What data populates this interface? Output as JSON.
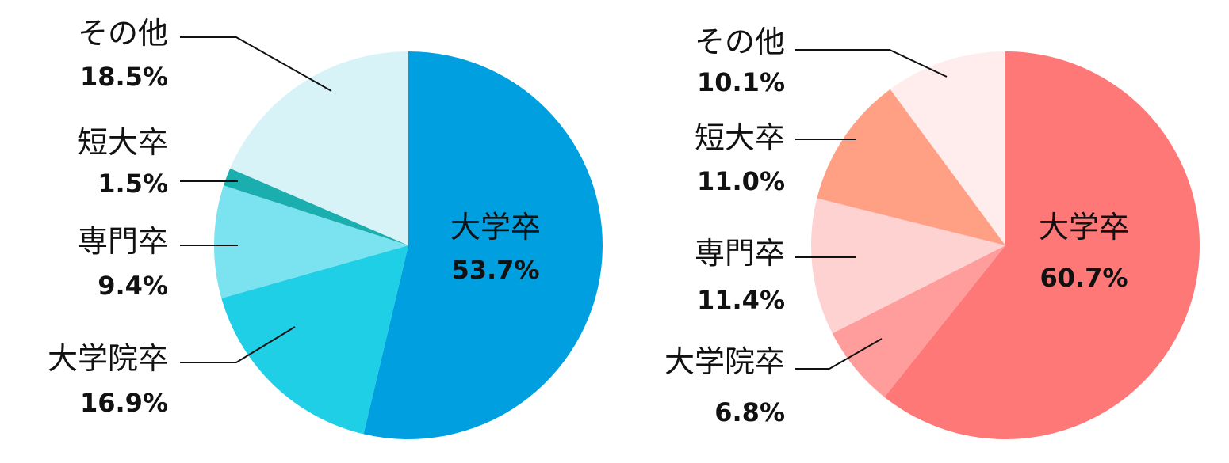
{
  "chart_data": [
    {
      "type": "pie",
      "start_angle": "12 o'clock",
      "direction": "clockwise",
      "slices": [
        {
          "label": "大学卒",
          "value": 53.7,
          "value_text": "53.7%",
          "color": "#009fe0",
          "label_inside": true
        },
        {
          "label": "大学院卒",
          "value": 16.9,
          "value_text": "16.9%",
          "color": "#1ecfe6"
        },
        {
          "label": "専門卒",
          "value": 9.4,
          "value_text": "9.4%",
          "color": "#7be3f0"
        },
        {
          "label": "短大卒",
          "value": 1.5,
          "value_text": "1.5%",
          "color": "#1aaeae"
        },
        {
          "label": "その他",
          "value": 18.5,
          "value_text": "18.5%",
          "color": "#d7f3f8"
        }
      ]
    },
    {
      "type": "pie",
      "start_angle": "12 o'clock",
      "direction": "clockwise",
      "slices": [
        {
          "label": "大学卒",
          "value": 60.7,
          "value_text": "60.7%",
          "color": "#ff7878",
          "label_inside": true
        },
        {
          "label": "大学院卒",
          "value": 6.8,
          "value_text": "6.8%",
          "color": "#ff9d9d"
        },
        {
          "label": "専門卒",
          "value": 11.4,
          "value_text": "11.4%",
          "color": "#ffd2d2"
        },
        {
          "label": "短大卒",
          "value": 11.0,
          "value_text": "11.0%",
          "color": "#ffa085"
        },
        {
          "label": "その他",
          "value": 10.1,
          "value_text": "10.1%",
          "color": "#ffeded"
        }
      ]
    }
  ]
}
